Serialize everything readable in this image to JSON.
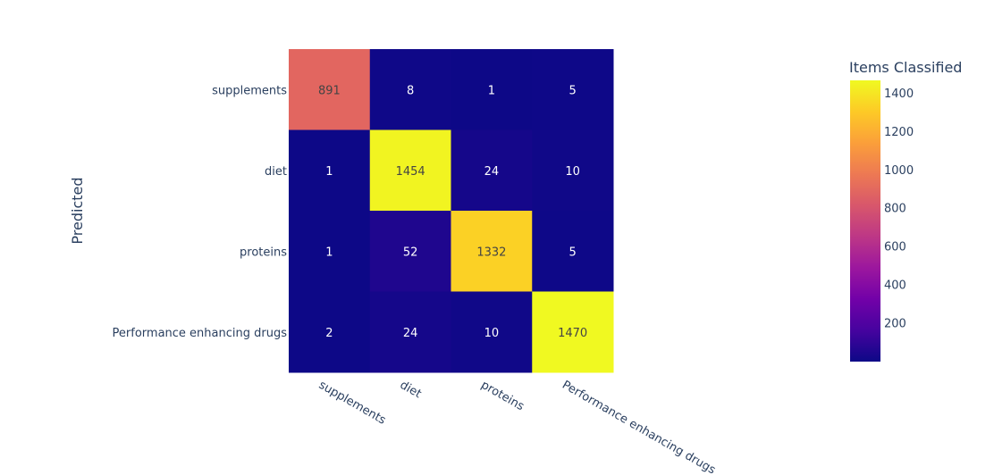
{
  "chart_data": {
    "type": "heatmap",
    "x_categories": [
      "supplements",
      "diet",
      "proteins",
      "Performance enhancing drugs"
    ],
    "y_categories": [
      "supplements",
      "diet",
      "proteins",
      "Performance enhancing drugs"
    ],
    "values": [
      [
        891,
        8,
        1,
        5
      ],
      [
        1,
        1454,
        24,
        10
      ],
      [
        1,
        52,
        1332,
        5
      ],
      [
        2,
        24,
        10,
        1470
      ]
    ],
    "ylabel": "Predicted",
    "xlabel": "",
    "colorbar": {
      "title": "Items Classified",
      "range": [
        1,
        1470
      ],
      "ticks": [
        200,
        400,
        600,
        800,
        1000,
        1200,
        1400
      ]
    },
    "colorscale": [
      "#0d0887",
      "#46039f",
      "#7201a8",
      "#9c179e",
      "#bd3786",
      "#d8576b",
      "#ed7953",
      "#fb9f3a",
      "#fdca26",
      "#f0f921"
    ]
  }
}
